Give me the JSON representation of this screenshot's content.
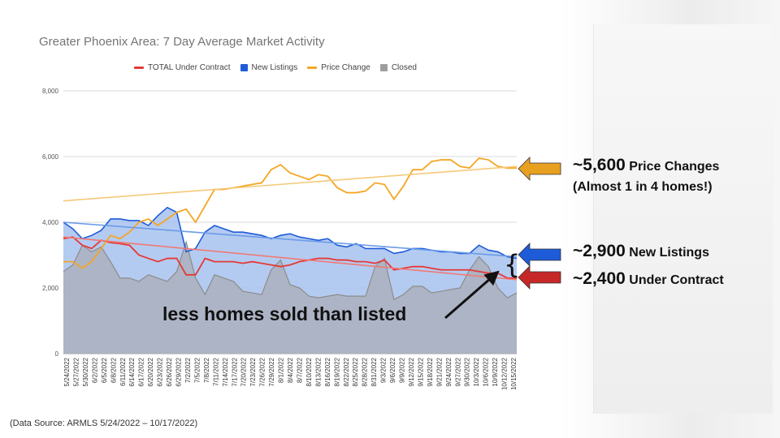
{
  "chart_data": {
    "type": "area",
    "title": "Greater Phoenix Area: 7 Day Average Market Activity",
    "ylim": [
      0,
      8000
    ],
    "yticks": [
      "0",
      "2,000",
      "4,000",
      "6,000",
      "8,000"
    ],
    "x_labels": [
      "5/24/2022",
      "5/27/2022",
      "5/30/2022",
      "6/2/2022",
      "6/5/2022",
      "6/8/2022",
      "6/11/2022",
      "6/14/2022",
      "6/17/2022",
      "6/20/2022",
      "6/23/2022",
      "6/26/2022",
      "6/29/2022",
      "7/2/2022",
      "7/5/2022",
      "7/8/2022",
      "7/11/2022",
      "7/14/2022",
      "7/17/2022",
      "7/20/2022",
      "7/23/2022",
      "7/26/2022",
      "7/29/2022",
      "8/1/2022",
      "8/4/2022",
      "8/7/2022",
      "8/10/2022",
      "8/13/2022",
      "8/16/2022",
      "8/19/2022",
      "8/22/2022",
      "8/25/2022",
      "8/28/2022",
      "8/31/2022",
      "9/3/2022",
      "9/6/2022",
      "9/9/2022",
      "9/12/2022",
      "9/15/2022",
      "9/18/2022",
      "9/21/2022",
      "9/24/2022",
      "9/27/2022",
      "9/30/2022",
      "10/3/2022",
      "10/6/2022",
      "10/9/2022",
      "10/12/2022",
      "10/15/2022"
    ],
    "legend_position": "top",
    "series": [
      {
        "name": "TOTAL Under Contract",
        "color": "#e53935",
        "type": "line",
        "values": [
          3500,
          3550,
          3300,
          3200,
          3450,
          3380,
          3350,
          3300,
          3000,
          2900,
          2800,
          2900,
          2900,
          2400,
          2400,
          2900,
          2800,
          2800,
          2800,
          2750,
          2800,
          2750,
          2700,
          2650,
          2700,
          2800,
          2850,
          2900,
          2900,
          2850,
          2850,
          2800,
          2800,
          2750,
          2850,
          2550,
          2600,
          2650,
          2650,
          2600,
          2550,
          2550,
          2550,
          2550,
          2500,
          2450,
          2450,
          2300,
          2300
        ]
      },
      {
        "name": "New Listings",
        "color": "#1e5bd8",
        "type": "area",
        "values": [
          4000,
          3800,
          3500,
          3600,
          3750,
          4100,
          4100,
          4050,
          4050,
          3900,
          4200,
          4450,
          4300,
          3100,
          3200,
          3700,
          3900,
          3800,
          3700,
          3700,
          3650,
          3600,
          3500,
          3600,
          3650,
          3550,
          3500,
          3450,
          3500,
          3300,
          3250,
          3350,
          3200,
          3200,
          3200,
          3050,
          3100,
          3200,
          3200,
          3150,
          3100,
          3100,
          3050,
          3050,
          3300,
          3150,
          3100,
          2950,
          2900
        ]
      },
      {
        "name": "Price Change",
        "color": "#f5a623",
        "type": "line",
        "values": [
          2800,
          2800,
          2600,
          2800,
          3200,
          3600,
          3500,
          3700,
          4000,
          4100,
          3900,
          4100,
          4300,
          4400,
          4000,
          4500,
          5000,
          5000,
          5050,
          5100,
          5150,
          5200,
          5600,
          5750,
          5500,
          5400,
          5300,
          5450,
          5400,
          5050,
          4900,
          4900,
          4950,
          5200,
          5150,
          4700,
          5100,
          5600,
          5600,
          5850,
          5900,
          5900,
          5700,
          5650,
          5950,
          5900,
          5700,
          5650,
          5650
        ]
      },
      {
        "name": "Closed",
        "color": "#9e9e9e",
        "type": "area",
        "values": [
          2500,
          2700,
          3300,
          3100,
          3250,
          2800,
          2300,
          2300,
          2200,
          2400,
          2300,
          2200,
          2500,
          3400,
          2300,
          1800,
          2400,
          2300,
          2200,
          1900,
          1850,
          1800,
          2550,
          2850,
          2100,
          2000,
          1750,
          1700,
          1750,
          1800,
          1750,
          1750,
          1750,
          2650,
          2900,
          1650,
          1800,
          2050,
          2050,
          1850,
          1900,
          1950,
          2000,
          2550,
          2950,
          2650,
          2000,
          1700,
          1850
        ]
      }
    ],
    "trendlines": [
      {
        "series": "Price Change",
        "start": 4650,
        "end": 5700,
        "color": "#f5c97a"
      },
      {
        "series": "New Listings",
        "start": 4000,
        "end": 2950,
        "color": "#6a9be8"
      },
      {
        "series": "TOTAL Under Contract",
        "start": 3550,
        "end": 2250,
        "color": "#ef7a76"
      }
    ]
  },
  "annotations": {
    "price_changes": {
      "number": "~5,600",
      "label": "Price Changes",
      "sub": "(Almost 1 in 4 homes!)",
      "arrow_color": "#e8a020"
    },
    "new_listings": {
      "number": "~2,900",
      "label": "New Listings",
      "arrow_color": "#1e5bd8"
    },
    "under_contract": {
      "number": "~2,400",
      "label": "Under Contract",
      "arrow_color": "#c62828"
    },
    "callout": "less homes sold than listed",
    "brace": "{"
  },
  "source": "(Data Source:  ARMLS 5/24/2022 – 10/17/2022)"
}
